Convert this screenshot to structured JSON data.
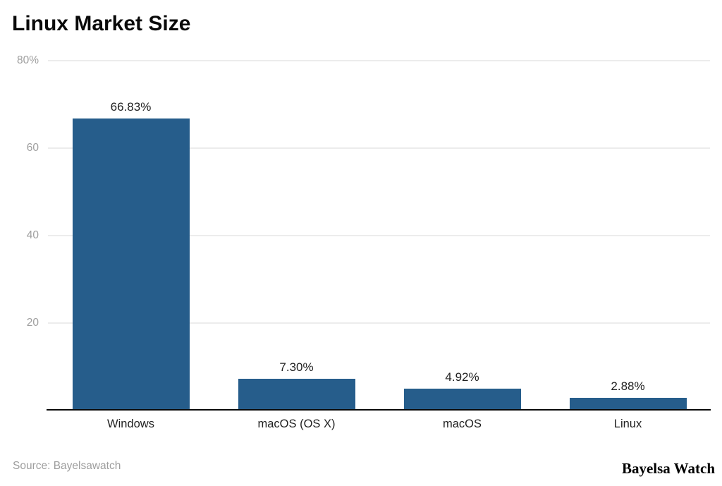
{
  "title": "Linux Market Size",
  "footer": {
    "source": "Source: Bayelsawatch",
    "brand": "Bayelsa Watch"
  },
  "colors": {
    "bar": "#265d8b",
    "grid": "#ececec",
    "axis": "#0a0a0a",
    "tick_label": "#9e9e9e",
    "value_label": "#212121",
    "category_label": "#212121",
    "background": "#ffffff"
  },
  "chart_data": {
    "type": "bar",
    "title": "Linux Market Size",
    "categories": [
      "Windows",
      "macOS (OS X)",
      "macOS",
      "Linux"
    ],
    "values": [
      66.83,
      7.3,
      4.92,
      2.88
    ],
    "value_labels": [
      "66.83%",
      "7.30%",
      "4.92%",
      "2.88%"
    ],
    "xlabel": "",
    "ylabel": "",
    "ylim": [
      0,
      80
    ],
    "yticks": [
      {
        "value": 20,
        "label": "20"
      },
      {
        "value": 40,
        "label": "40"
      },
      {
        "value": 60,
        "label": "60"
      },
      {
        "value": 80,
        "label": "80%"
      }
    ],
    "grid": true,
    "legend_position": "none"
  }
}
